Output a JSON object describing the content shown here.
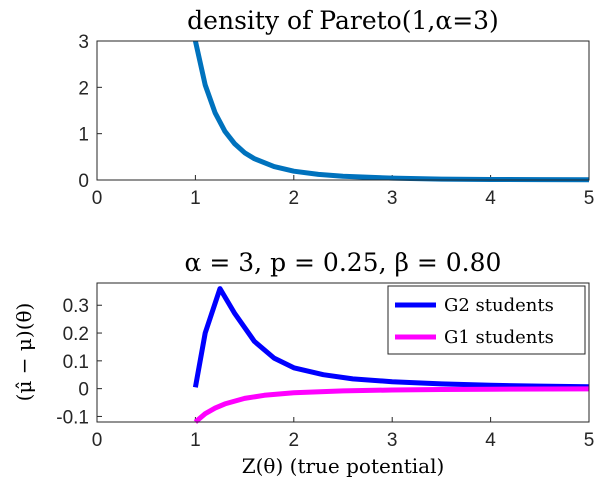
{
  "chart_data": [
    {
      "type": "line",
      "title": "density of Pareto(1,α=3)",
      "xlabel": "",
      "ylabel": "",
      "xlim": [
        0,
        5
      ],
      "ylim": [
        0,
        3
      ],
      "xticks": [
        "0",
        "1",
        "2",
        "3",
        "4",
        "5"
      ],
      "yticks": [
        "0",
        "1",
        "2",
        "3"
      ],
      "grid": false,
      "legend": "none",
      "series": [
        {
          "color": "#0072bd",
          "x": [
            1.0,
            1.1,
            1.2,
            1.3,
            1.4,
            1.5,
            1.6,
            1.8,
            2.0,
            2.25,
            2.5,
            3.0,
            3.5,
            4.0,
            4.5,
            5.0
          ],
          "y": [
            3.0,
            2.05,
            1.45,
            1.05,
            0.78,
            0.59,
            0.46,
            0.29,
            0.19,
            0.12,
            0.08,
            0.04,
            0.02,
            0.01,
            0.008,
            0.005
          ]
        }
      ]
    },
    {
      "type": "line",
      "title": "α = 3, p = 0.25, β = 0.80",
      "xlabel": "Z(θ) (true potential)",
      "ylabel": "(μ̂ − μ)(θ)",
      "xlim": [
        0,
        5
      ],
      "ylim": [
        -0.12,
        0.38
      ],
      "xticks": [
        "0",
        "1",
        "2",
        "3",
        "4",
        "5"
      ],
      "yticks": [
        "-0.1",
        "0",
        "0.1",
        "0.2",
        "0.3"
      ],
      "grid": false,
      "legend": "top-right",
      "series": [
        {
          "name": "G2 students",
          "color": "#0000ff",
          "x": [
            1.0,
            1.1,
            1.25,
            1.4,
            1.6,
            1.8,
            2.0,
            2.3,
            2.6,
            3.0,
            3.5,
            4.0,
            4.5,
            5.0
          ],
          "y": [
            0.005,
            0.2,
            0.36,
            0.27,
            0.17,
            0.11,
            0.075,
            0.05,
            0.035,
            0.025,
            0.017,
            0.012,
            0.009,
            0.007
          ]
        },
        {
          "name": "G1 students",
          "color": "#ff00ff",
          "x": [
            1.0,
            1.1,
            1.2,
            1.3,
            1.5,
            1.7,
            2.0,
            2.5,
            3.0,
            3.5,
            4.0,
            5.0
          ],
          "y": [
            -0.12,
            -0.09,
            -0.07,
            -0.055,
            -0.035,
            -0.024,
            -0.015,
            -0.008,
            -0.005,
            -0.003,
            -0.002,
            -0.001
          ]
        }
      ]
    }
  ]
}
